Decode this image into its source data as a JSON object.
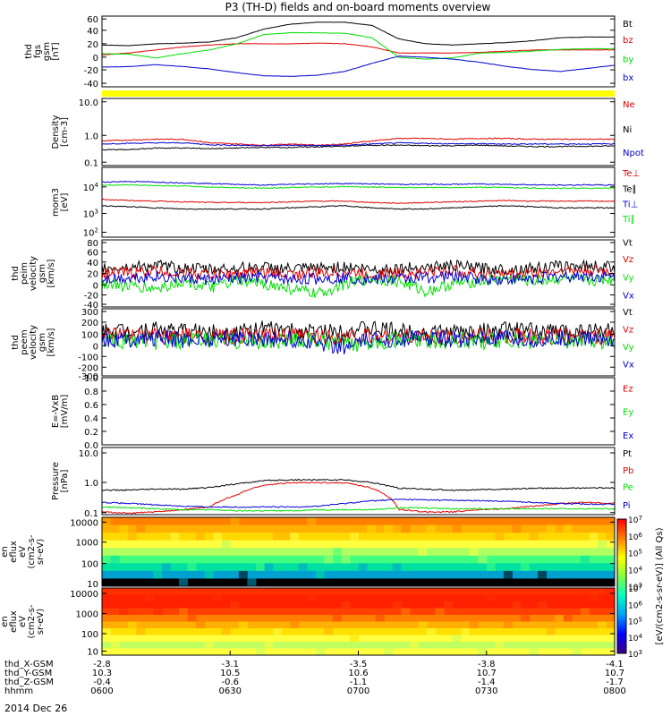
{
  "title": "P3 (TH-D) fields and on-board moments overview",
  "date": "2014 Dec 26",
  "orbit_labels": {
    "rows": [
      "thd_X-GSM",
      "thd_Y-GSM",
      "thd_Z-GSM",
      "hhmm"
    ],
    "values": [
      [
        "-2.8",
        "-3.1",
        "-3.5",
        "-3.8",
        "-4.1"
      ],
      [
        "10.3",
        "10.5",
        "10.6",
        "10.7",
        "10.7"
      ],
      [
        "-0.4",
        "-0.6",
        "-1.1",
        "-1.4",
        "-1.7"
      ],
      [
        "0600",
        "0630",
        "0700",
        "0730",
        "0800"
      ]
    ]
  },
  "colorbar": {
    "label": "[eV/(cm2-s-sr-eV)] (All Qs)",
    "ticks": [
      "10^7",
      "10^6",
      "10^5",
      "10^4",
      "10^3"
    ]
  },
  "colors": {
    "black": "#000000",
    "red": "#e00000",
    "green": "#00e000",
    "blue": "#0000d0",
    "yellow": "#ffff00"
  },
  "chart_data": [
    {
      "type": "line",
      "ylabel": [
        "thd",
        "fgs",
        "gsm",
        "[nT]"
      ],
      "yticks": [
        "60",
        "40",
        "20",
        "0",
        "-20",
        "-40"
      ],
      "ylim": [
        -50,
        65
      ],
      "scale": "linear",
      "bar_band": "yellow",
      "series": [
        {
          "name": "Bt",
          "color": "#000000",
          "values": [
            18,
            17,
            20,
            21,
            23,
            30,
            44,
            52,
            55,
            55,
            50,
            28,
            20,
            18,
            20,
            22,
            25,
            30,
            31,
            31
          ]
        },
        {
          "name": "bz",
          "color": "#e00000",
          "values": [
            2,
            5,
            10,
            15,
            18,
            20,
            20,
            20,
            21,
            20,
            15,
            5,
            5,
            5,
            6,
            8,
            10,
            10,
            10,
            10
          ]
        },
        {
          "name": "by",
          "color": "#00e000",
          "values": [
            4,
            3,
            -3,
            4,
            10,
            20,
            35,
            38,
            38,
            37,
            30,
            -2,
            -5,
            -3,
            5,
            6,
            8,
            11,
            12,
            12
          ]
        },
        {
          "name": "bx",
          "color": "#0000d0",
          "values": [
            -18,
            -17,
            -14,
            -17,
            -21,
            -27,
            -32,
            -33,
            -31,
            -25,
            -12,
            0,
            -2,
            -5,
            -10,
            -17,
            -22,
            -25,
            -20,
            -15
          ]
        }
      ]
    },
    {
      "type": "line",
      "ylabel": [
        "Density",
        "[cm-3]"
      ],
      "yticks": [
        "10.0",
        "1.0",
        "0.1"
      ],
      "ylim": [
        0.1,
        20
      ],
      "scale": "log",
      "series": [
        {
          "name": "Ne",
          "color": "#e00000",
          "values": [
            0.7,
            0.75,
            0.8,
            0.8,
            0.6,
            0.55,
            0.5,
            0.55,
            0.5,
            0.55,
            0.7,
            0.85,
            0.85,
            0.8,
            0.85,
            0.85,
            0.8,
            0.8,
            0.8,
            0.8
          ]
        },
        {
          "name": "Ni",
          "color": "#000000",
          "values": [
            0.35,
            0.35,
            0.4,
            0.4,
            0.38,
            0.4,
            0.42,
            0.42,
            0.44,
            0.46,
            0.5,
            0.5,
            0.48,
            0.48,
            0.5,
            0.47,
            0.45,
            0.45,
            0.46,
            0.47
          ]
        },
        {
          "name": "Npot",
          "color": "#0000d0",
          "values": [
            0.55,
            0.58,
            0.6,
            0.6,
            0.52,
            0.5,
            0.48,
            0.5,
            0.48,
            0.5,
            0.55,
            0.6,
            0.58,
            0.56,
            0.56,
            0.55,
            0.55,
            0.55,
            0.55,
            0.56
          ]
        }
      ]
    },
    {
      "type": "line",
      "ylabel": [
        "mom3",
        "[eV]"
      ],
      "yticks": [
        "10^4",
        "10^3",
        "10^2"
      ],
      "ylim": [
        100,
        30000
      ],
      "scale": "log",
      "series": [
        {
          "name": "Te⊥",
          "color": "#e00000",
          "values": [
            2200,
            2000,
            1900,
            1800,
            1700,
            1700,
            1700,
            1800,
            1900,
            1900,
            1700,
            1600,
            1700,
            1800,
            1900,
            2000,
            1900,
            1900,
            1900,
            1900
          ]
        },
        {
          "name": "Te∥",
          "color": "#000000",
          "values": [
            1300,
            1200,
            1100,
            1000,
            1000,
            1000,
            1000,
            1100,
            1200,
            1300,
            1100,
            1000,
            1000,
            1100,
            1200,
            1300,
            1200,
            1100,
            1100,
            1100
          ]
        },
        {
          "name": "Ti⊥",
          "color": "#0000d0",
          "values": [
            9000,
            9500,
            9000,
            8500,
            8000,
            7500,
            7000,
            7500,
            7800,
            8000,
            7800,
            7500,
            7500,
            7500,
            7800,
            7500,
            7200,
            7000,
            7200,
            7000
          ]
        },
        {
          "name": "Ti∥",
          "color": "#00e000",
          "values": [
            7000,
            7200,
            6800,
            6500,
            6000,
            5700,
            5500,
            5800,
            6000,
            6200,
            6000,
            5800,
            5800,
            5700,
            5900,
            5800,
            5500,
            5400,
            5500,
            5400
          ]
        }
      ]
    },
    {
      "type": "line",
      "ylabel": [
        "thd",
        "peim",
        "velocity",
        "gsm",
        "[km/s]"
      ],
      "yticks": [
        "80",
        "60",
        "40",
        "20",
        "0",
        "-20",
        "-40"
      ],
      "ylim": [
        -45,
        85
      ],
      "scale": "linear",
      "series": [
        {
          "name": "Vt",
          "color": "#000000",
          "values": [
            30,
            32,
            35,
            30,
            28,
            30,
            32,
            28,
            30,
            33,
            28,
            30,
            32,
            35,
            30,
            28,
            30,
            34,
            35,
            33
          ]
        },
        {
          "name": "Vz",
          "color": "#e00000",
          "values": [
            20,
            22,
            25,
            20,
            18,
            20,
            22,
            18,
            20,
            22,
            18,
            20,
            22,
            25,
            20,
            18,
            20,
            24,
            25,
            22
          ]
        },
        {
          "name": "Vy",
          "color": "#00e000",
          "values": [
            0,
            -5,
            -10,
            5,
            -8,
            5,
            0,
            -10,
            -20,
            0,
            10,
            5,
            -15,
            0,
            5,
            10,
            5,
            10,
            5,
            10
          ]
        },
        {
          "name": "Vx",
          "color": "#0000d0",
          "values": [
            10,
            12,
            15,
            10,
            8,
            10,
            12,
            8,
            10,
            12,
            8,
            10,
            12,
            15,
            10,
            8,
            10,
            14,
            15,
            12
          ]
        }
      ]
    },
    {
      "type": "line",
      "ylabel": [
        "thd",
        "peem",
        "velocity",
        "gsm",
        "[km/s]"
      ],
      "yticks": [
        "300",
        "200",
        "100",
        "0",
        "-100",
        "-200",
        "-300"
      ],
      "ylim": [
        -300,
        300
      ],
      "scale": "linear",
      "series": [
        {
          "name": "Vt",
          "color": "#000000",
          "values": [
            100,
            110,
            120,
            100,
            90,
            100,
            120,
            100,
            90,
            110,
            120,
            100,
            90,
            90,
            100,
            110,
            100,
            100,
            110,
            110
          ]
        },
        {
          "name": "Vz",
          "color": "#e00000",
          "values": [
            60,
            55,
            60,
            55,
            50,
            55,
            55,
            60,
            55,
            50,
            55,
            50,
            50,
            50,
            55,
            55,
            50,
            50,
            55,
            55
          ]
        },
        {
          "name": "Vy",
          "color": "#00e000",
          "values": [
            10,
            20,
            0,
            10,
            20,
            10,
            5,
            20,
            10,
            -30,
            10,
            20,
            10,
            20,
            10,
            20,
            10,
            20,
            10,
            20
          ]
        },
        {
          "name": "Vx",
          "color": "#0000d0",
          "values": [
            30,
            25,
            40,
            20,
            30,
            40,
            30,
            20,
            0,
            -40,
            20,
            30,
            40,
            30,
            20,
            30,
            20,
            30,
            40,
            30
          ]
        }
      ]
    },
    {
      "type": "line",
      "ylabel": [
        "E=-VxB",
        "[mV/m]"
      ],
      "yticks": [
        "1.0",
        "0.8",
        "0.6",
        "0.4",
        "0.2",
        "0.0"
      ],
      "ylim": [
        0,
        1
      ],
      "scale": "linear",
      "series": [
        {
          "name": "Ez",
          "color": "#e00000",
          "values": []
        },
        {
          "name": "Ey",
          "color": "#00e000",
          "values": []
        },
        {
          "name": "Ex",
          "color": "#0000d0",
          "values": []
        }
      ]
    },
    {
      "type": "line",
      "ylabel": [
        "Pressure",
        "[nPa]"
      ],
      "yticks": [
        "10.0",
        "1.0",
        "0.1"
      ],
      "ylim": [
        0.08,
        20
      ],
      "scale": "log",
      "series": [
        {
          "name": "Pt",
          "color": "#000000",
          "values": [
            0.6,
            0.6,
            0.65,
            0.65,
            0.75,
            1.0,
            1.3,
            1.4,
            1.4,
            1.4,
            1.1,
            0.7,
            0.65,
            0.6,
            0.62,
            0.65,
            0.7,
            0.7,
            0.72,
            0.72
          ]
        },
        {
          "name": "Pb",
          "color": "#e00000",
          "values": [
            0.1,
            0.09,
            0.1,
            0.12,
            0.15,
            0.4,
            0.9,
            1.1,
            1.1,
            1.1,
            0.7,
            0.12,
            0.1,
            0.1,
            0.12,
            0.13,
            0.16,
            0.2,
            0.22,
            0.2
          ]
        },
        {
          "name": "Pe",
          "color": "#00e000",
          "values": [
            0.15,
            0.14,
            0.13,
            0.12,
            0.12,
            0.11,
            0.11,
            0.11,
            0.12,
            0.12,
            0.12,
            0.14,
            0.14,
            0.13,
            0.13,
            0.13,
            0.13,
            0.13,
            0.13,
            0.13
          ]
        },
        {
          "name": "Pi",
          "color": "#0000d0",
          "values": [
            0.22,
            0.2,
            0.18,
            0.16,
            0.15,
            0.15,
            0.15,
            0.15,
            0.16,
            0.2,
            0.25,
            0.28,
            0.27,
            0.26,
            0.25,
            0.24,
            0.22,
            0.2,
            0.19,
            0.19
          ]
        }
      ]
    },
    {
      "type": "heatmap",
      "ylabel": [
        "thd",
        "peir",
        "en",
        "eflux",
        "eV",
        "(cm2-s-",
        "sr-eV)"
      ],
      "yticks": [
        "10000",
        "1000",
        "100",
        "10"
      ],
      "scale": "log",
      "bands": [
        "#ff8000",
        "#ffb000",
        "#ffd800",
        "#ffff40",
        "#b0ff60",
        "#40ff80",
        "#00e0a0",
        "#00a0d0",
        "#000000"
      ]
    },
    {
      "type": "heatmap",
      "ylabel": [
        "thd",
        "peer",
        "en",
        "eflux",
        "eV",
        "(cm2-s-",
        "sr-eV)"
      ],
      "yticks": [
        "10000",
        "1000",
        "100",
        "10"
      ],
      "scale": "log",
      "bands": [
        "#ff3000",
        "#ff2000",
        "#ff2000",
        "#ff4000",
        "#ff8000",
        "#ffb000",
        "#ffe000",
        "#ffff40",
        "#c0ff60",
        "#ffff40"
      ]
    }
  ]
}
